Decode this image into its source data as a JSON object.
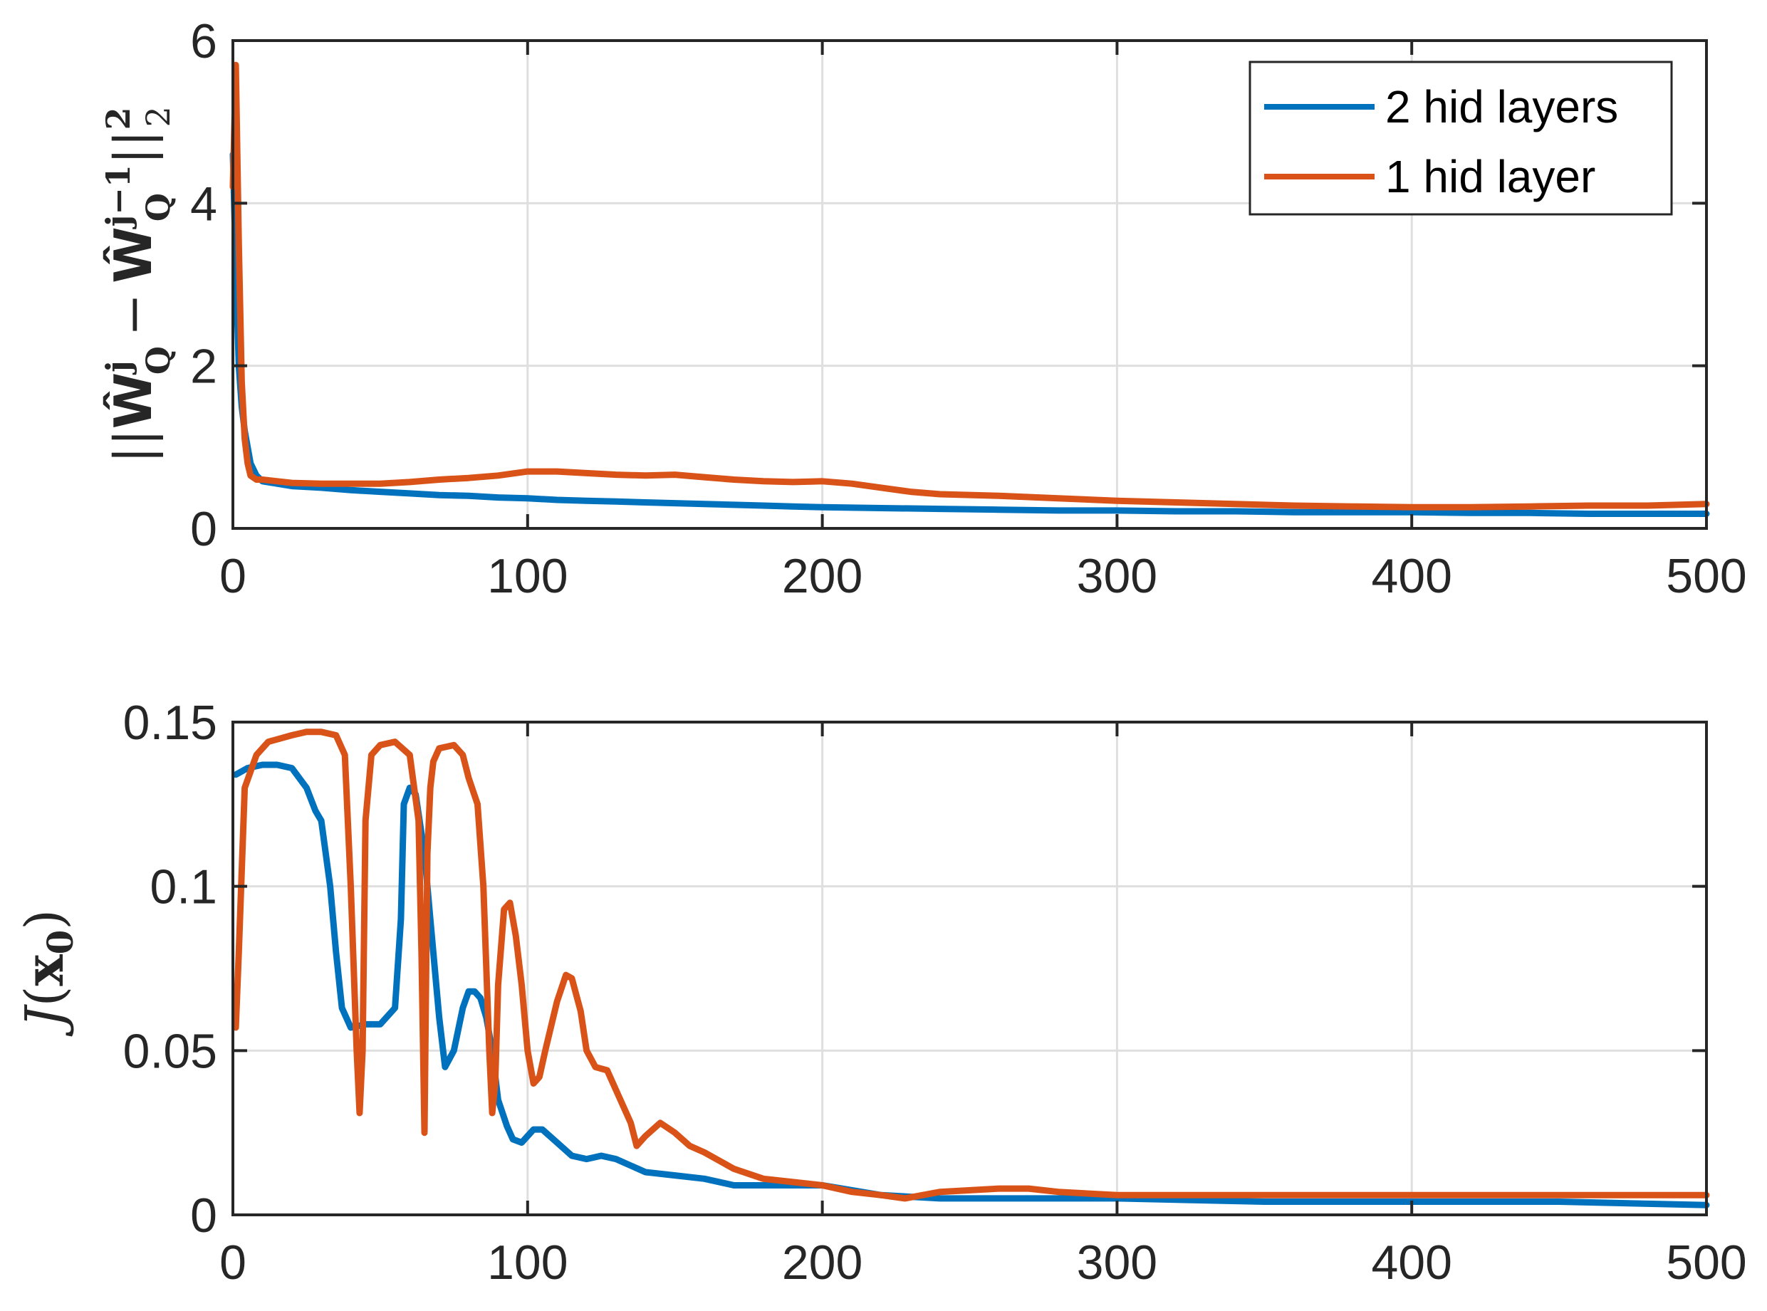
{
  "chart_data": [
    {
      "type": "line",
      "title": "",
      "xlabel": "",
      "ylabel": "||Ŵ_Q^j − Ŵ_Q^{j−1}||₂²",
      "ylabel_parts": {
        "bars": "||",
        "sym": "Ŵ",
        "sub": "Q",
        "sup_a": "j",
        "minus": "−",
        "sup_b": "j−1",
        "end_sub": "2",
        "end_sup": "2"
      },
      "xlim": [
        0,
        500
      ],
      "ylim": [
        0,
        6
      ],
      "xticks": [
        0,
        100,
        200,
        300,
        400,
        500
      ],
      "yticks": [
        0,
        2,
        4,
        6
      ],
      "grid": true,
      "legend_position": "top-right",
      "series": [
        {
          "name": "2 hid layers",
          "color": "#0072BD",
          "x": [
            0,
            1,
            2,
            3,
            4,
            5,
            6,
            8,
            10,
            15,
            20,
            30,
            40,
            50,
            60,
            70,
            80,
            90,
            100,
            110,
            120,
            130,
            140,
            150,
            160,
            170,
            180,
            190,
            200,
            220,
            240,
            260,
            280,
            300,
            320,
            340,
            360,
            380,
            400,
            420,
            440,
            460,
            480,
            500
          ],
          "values": [
            4.6,
            3.2,
            2.0,
            1.5,
            1.2,
            1.0,
            0.8,
            0.65,
            0.58,
            0.55,
            0.52,
            0.5,
            0.47,
            0.45,
            0.43,
            0.41,
            0.4,
            0.38,
            0.37,
            0.35,
            0.34,
            0.33,
            0.32,
            0.31,
            0.3,
            0.29,
            0.28,
            0.27,
            0.26,
            0.25,
            0.24,
            0.23,
            0.22,
            0.22,
            0.21,
            0.21,
            0.2,
            0.2,
            0.2,
            0.19,
            0.19,
            0.18,
            0.18,
            0.18
          ]
        },
        {
          "name": "1 hid layer",
          "color": "#D95319",
          "x": [
            0,
            1,
            2,
            3,
            4,
            5,
            6,
            8,
            10,
            15,
            20,
            30,
            40,
            50,
            60,
            70,
            80,
            90,
            100,
            110,
            120,
            130,
            140,
            150,
            160,
            170,
            180,
            190,
            200,
            210,
            220,
            230,
            240,
            260,
            280,
            300,
            320,
            340,
            360,
            380,
            400,
            420,
            440,
            460,
            480,
            500
          ],
          "values": [
            4.2,
            5.7,
            3.5,
            1.8,
            1.1,
            0.8,
            0.65,
            0.6,
            0.6,
            0.58,
            0.56,
            0.55,
            0.55,
            0.55,
            0.57,
            0.6,
            0.62,
            0.65,
            0.7,
            0.7,
            0.68,
            0.66,
            0.65,
            0.66,
            0.63,
            0.6,
            0.58,
            0.57,
            0.58,
            0.55,
            0.5,
            0.45,
            0.42,
            0.4,
            0.37,
            0.34,
            0.32,
            0.3,
            0.28,
            0.27,
            0.26,
            0.26,
            0.27,
            0.28,
            0.28,
            0.3
          ]
        }
      ]
    },
    {
      "type": "line",
      "title": "",
      "xlabel": "",
      "ylabel": "J(x₀)",
      "ylabel_parts": {
        "fn": "J",
        "open": "(",
        "var": "x",
        "sub": "0",
        "close": ")"
      },
      "xlim": [
        0,
        500
      ],
      "ylim": [
        0,
        0.15
      ],
      "xticks": [
        0,
        100,
        200,
        300,
        400,
        500
      ],
      "yticks": [
        0,
        0.05,
        0.1,
        0.15
      ],
      "grid": true,
      "series": [
        {
          "name": "2 hid layers",
          "color": "#0072BD",
          "x": [
            1,
            5,
            10,
            15,
            20,
            25,
            28,
            30,
            33,
            35,
            37,
            40,
            45,
            50,
            55,
            57,
            58,
            60,
            62,
            65,
            67,
            70,
            72,
            75,
            78,
            80,
            82,
            84,
            86,
            88,
            90,
            93,
            95,
            98,
            100,
            102,
            105,
            110,
            115,
            120,
            125,
            130,
            135,
            140,
            150,
            160,
            170,
            180,
            190,
            200,
            220,
            240,
            260,
            280,
            300,
            350,
            400,
            450,
            500
          ],
          "values": [
            0.134,
            0.136,
            0.137,
            0.137,
            0.136,
            0.13,
            0.123,
            0.12,
            0.1,
            0.08,
            0.063,
            0.057,
            0.058,
            0.058,
            0.063,
            0.09,
            0.125,
            0.13,
            0.128,
            0.11,
            0.09,
            0.06,
            0.045,
            0.05,
            0.063,
            0.068,
            0.068,
            0.066,
            0.06,
            0.05,
            0.035,
            0.027,
            0.023,
            0.022,
            0.024,
            0.026,
            0.026,
            0.022,
            0.018,
            0.017,
            0.018,
            0.017,
            0.015,
            0.013,
            0.012,
            0.011,
            0.009,
            0.009,
            0.009,
            0.009,
            0.006,
            0.005,
            0.005,
            0.005,
            0.005,
            0.004,
            0.004,
            0.004,
            0.003
          ]
        },
        {
          "name": "1 hid layer",
          "color": "#D95319",
          "x": [
            1,
            2,
            4,
            8,
            12,
            20,
            25,
            30,
            35,
            38,
            40,
            42,
            43,
            44,
            45,
            47,
            50,
            55,
            60,
            63,
            64,
            65,
            66,
            67,
            68,
            70,
            75,
            78,
            80,
            83,
            85,
            87,
            88,
            89,
            90,
            92,
            94,
            96,
            98,
            100,
            102,
            104,
            106,
            110,
            113,
            115,
            118,
            120,
            123,
            127,
            130,
            135,
            137,
            140,
            145,
            150,
            155,
            160,
            170,
            180,
            190,
            200,
            210,
            220,
            228,
            240,
            260,
            270,
            280,
            300,
            320,
            360,
            400,
            450,
            500
          ],
          "values": [
            0.057,
            0.08,
            0.13,
            0.14,
            0.144,
            0.146,
            0.147,
            0.147,
            0.146,
            0.14,
            0.1,
            0.05,
            0.031,
            0.05,
            0.12,
            0.14,
            0.143,
            0.144,
            0.14,
            0.12,
            0.08,
            0.025,
            0.11,
            0.13,
            0.138,
            0.142,
            0.143,
            0.14,
            0.133,
            0.125,
            0.1,
            0.05,
            0.031,
            0.04,
            0.07,
            0.093,
            0.095,
            0.085,
            0.07,
            0.05,
            0.04,
            0.042,
            0.05,
            0.065,
            0.073,
            0.072,
            0.062,
            0.05,
            0.045,
            0.044,
            0.038,
            0.028,
            0.021,
            0.024,
            0.028,
            0.025,
            0.021,
            0.019,
            0.014,
            0.011,
            0.01,
            0.009,
            0.007,
            0.006,
            0.005,
            0.007,
            0.008,
            0.008,
            0.007,
            0.006,
            0.006,
            0.006,
            0.006,
            0.006,
            0.006
          ]
        }
      ]
    }
  ]
}
